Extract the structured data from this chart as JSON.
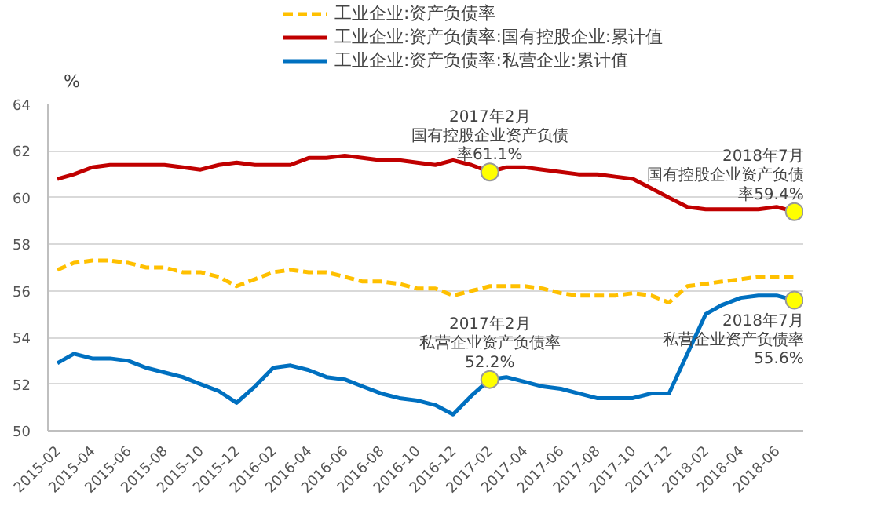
{
  "chart_data": {
    "type": "line",
    "ylabel": "%",
    "x": [
      "2015-02",
      "2015-03",
      "2015-04",
      "2015-05",
      "2015-06",
      "2015-07",
      "2015-08",
      "2015-09",
      "2015-10",
      "2015-11",
      "2015-12",
      "2016-01",
      "2016-02",
      "2016-03",
      "2016-04",
      "2016-05",
      "2016-06",
      "2016-07",
      "2016-08",
      "2016-09",
      "2016-10",
      "2016-11",
      "2016-12",
      "2017-01",
      "2017-02",
      "2017-03",
      "2017-04",
      "2017-05",
      "2017-06",
      "2017-07",
      "2017-08",
      "2017-09",
      "2017-10",
      "2017-11",
      "2017-12",
      "2018-01",
      "2018-02",
      "2018-03",
      "2018-04",
      "2018-05",
      "2018-06",
      "2018-07"
    ],
    "xlim": [
      "2015-01-16",
      "2018-07-16"
    ],
    "xticks": [
      "2015-02",
      "2015-04",
      "2015-06",
      "2015-08",
      "2015-10",
      "2015-12",
      "2016-02",
      "2016-04",
      "2016-06",
      "2016-08",
      "2016-10",
      "2016-12",
      "2017-02",
      "2017-04",
      "2017-06",
      "2017-08",
      "2017-10",
      "2017-12",
      "2018-02",
      "2018-04",
      "2018-06"
    ],
    "series": [
      {
        "name": "工业企业:资产负债率",
        "color": "#ffc000",
        "line_style": "dashed",
        "values": [
          56.9,
          57.2,
          57.3,
          57.3,
          57.2,
          57.0,
          57.0,
          56.8,
          56.8,
          56.6,
          56.2,
          56.5,
          56.8,
          56.9,
          56.8,
          56.8,
          56.6,
          56.4,
          56.4,
          56.3,
          56.1,
          56.1,
          55.8,
          56.0,
          56.2,
          56.2,
          56.2,
          56.1,
          55.9,
          55.8,
          55.8,
          55.8,
          55.9,
          55.8,
          55.5,
          56.2,
          56.3,
          56.4,
          56.5,
          56.6,
          56.6,
          56.6
        ]
      },
      {
        "name": "工业企业:资产负债率:国有控股企业:累计值",
        "color": "#c00000",
        "line_style": "solid",
        "values": [
          60.8,
          61.0,
          61.3,
          61.4,
          61.4,
          61.4,
          61.4,
          61.3,
          61.2,
          61.4,
          61.5,
          61.4,
          61.4,
          61.4,
          61.7,
          61.7,
          61.8,
          61.7,
          61.6,
          61.6,
          61.5,
          61.4,
          61.6,
          61.4,
          61.1,
          61.3,
          61.3,
          61.2,
          61.1,
          61.0,
          61.0,
          60.9,
          60.8,
          60.4,
          60.0,
          59.6,
          59.5,
          59.5,
          59.5,
          59.5,
          59.6,
          59.4
        ]
      },
      {
        "name": "工业企业:资产负债率:私营企业:累计值",
        "color": "#0070c0",
        "line_style": "solid",
        "values": [
          52.9,
          53.3,
          53.1,
          53.1,
          53.0,
          52.7,
          52.5,
          52.3,
          52.0,
          51.7,
          51.2,
          51.9,
          52.7,
          52.8,
          52.6,
          52.3,
          52.2,
          51.9,
          51.6,
          51.4,
          51.3,
          51.1,
          50.7,
          51.5,
          52.2,
          52.3,
          52.1,
          51.9,
          51.8,
          51.6,
          51.4,
          51.4,
          51.4,
          51.6,
          51.6,
          53.3,
          55.0,
          55.4,
          55.7,
          55.8,
          55.8,
          55.6
        ]
      }
    ],
    "ylim": [
      50,
      64
    ],
    "yticks": [
      50,
      52,
      54,
      56,
      58,
      60,
      62,
      64
    ],
    "grid": "y",
    "legend": "top",
    "marker": "none",
    "annotations": [
      {
        "text": "2017年2月国有控股企业资产负债率61.1%",
        "x": "2017-02",
        "y": 61.1
      },
      {
        "text": "2018年7月国有控股企业资产负债率59.4%",
        "x": "2018-07",
        "y": 59.4
      },
      {
        "text": "2017年2月私营企业资产负债率52.2%",
        "x": "2017-02",
        "y": 52.2
      },
      {
        "text": "2018年7月私营企业资产负债率55.6%",
        "x": "2018-07",
        "y": 55.6
      }
    ]
  }
}
